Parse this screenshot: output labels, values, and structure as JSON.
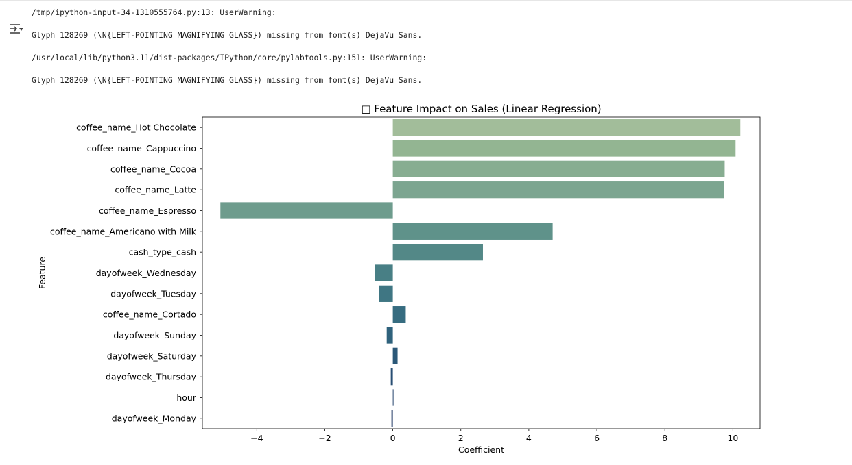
{
  "output": {
    "toggle_icon": "output-menu-icon",
    "warnings": [
      "/tmp/ipython-input-34-1310555764.py:13: UserWarning:",
      "Glyph 128269 (\\N{LEFT-POINTING MAGNIFYING GLASS}) missing from font(s) DejaVu Sans.",
      "/usr/local/lib/python3.11/dist-packages/IPython/core/pylabtools.py:151: UserWarning:",
      "Glyph 128269 (\\N{LEFT-POINTING MAGNIFYING GLASS}) missing from font(s) DejaVu Sans."
    ]
  },
  "chart_data": {
    "type": "bar",
    "orientation": "horizontal",
    "title": "□ Feature Impact on Sales (Linear Regression)",
    "xlabel": "Coefficient",
    "ylabel": "Feature",
    "xlim": [
      -5.6,
      10.8
    ],
    "xticks": [
      -4,
      -2,
      0,
      2,
      4,
      6,
      8,
      10
    ],
    "xtick_labels": [
      "−4",
      "−2",
      "0",
      "2",
      "4",
      "6",
      "8",
      "10"
    ],
    "grid": false,
    "palette": "crest",
    "categories": [
      "coffee_name_Hot Chocolate",
      "coffee_name_Cappuccino",
      "coffee_name_Cocoa",
      "coffee_name_Latte",
      "coffee_name_Espresso",
      "coffee_name_Americano with Milk",
      "cash_type_cash",
      "dayofweek_Wednesday",
      "dayofweek_Tuesday",
      "coffee_name_Cortado",
      "dayofweek_Sunday",
      "dayofweek_Saturday",
      "dayofweek_Thursday",
      "hour",
      "dayofweek_Monday"
    ],
    "values": [
      10.22,
      10.08,
      9.76,
      9.74,
      -5.07,
      4.7,
      2.65,
      -0.53,
      -0.4,
      0.38,
      -0.18,
      0.14,
      -0.06,
      0.02,
      -0.04
    ],
    "colors": [
      "#a2bd9a",
      "#93b592",
      "#87ad91",
      "#7ca590",
      "#6e9c8d",
      "#5f928a",
      "#538887",
      "#487f85",
      "#3f7683",
      "#366c80",
      "#2f627c",
      "#2b5878",
      "#284e73",
      "#26446d",
      "#253c67"
    ]
  }
}
